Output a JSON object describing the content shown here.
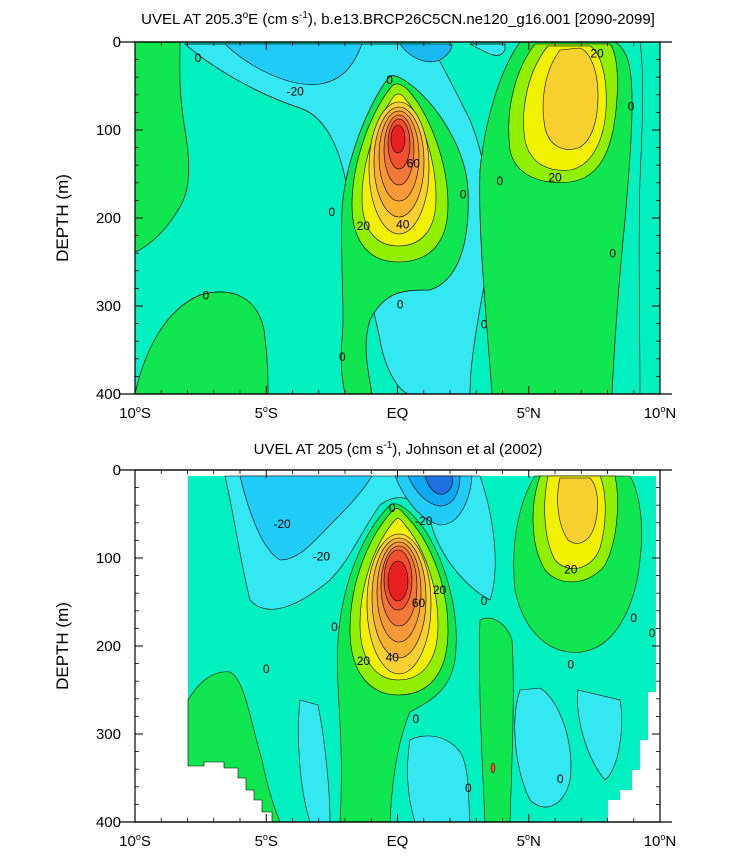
{
  "chart_data": [
    {
      "type": "heatmap",
      "title_main": "UVEL AT 205.3",
      "title_deg": "o",
      "title_unit_pre": "E (cm s",
      "title_exp": "-1",
      "title_rest": "), b.e13.BRCP26C5CN.ne120_g16.001 [2090-2099]",
      "xlabel": "",
      "ylabel": "DEPTH (m)",
      "xlim": [
        -10,
        10
      ],
      "ylim": [
        0,
        400
      ],
      "y_inverted": true,
      "xticks": [
        {
          "value": -10,
          "base": "10",
          "deg": "o",
          "hemi": "S"
        },
        {
          "value": -5,
          "base": "5",
          "deg": "o",
          "hemi": "S"
        },
        {
          "value": 0,
          "base": "EQ",
          "deg": "",
          "hemi": ""
        },
        {
          "value": 5,
          "base": "5",
          "deg": "o",
          "hemi": "N"
        },
        {
          "value": 10,
          "base": "10",
          "deg": "o",
          "hemi": "N"
        }
      ],
      "yticks": [
        0,
        100,
        200,
        300,
        400
      ],
      "contour_interval": 10,
      "features": [
        {
          "kind": "undercurrent_core",
          "x": 0.0,
          "y": 132,
          "value": 85
        },
        {
          "kind": "eastward_max",
          "x": 6.3,
          "y": 55,
          "value": 30
        },
        {
          "kind": "westward_min",
          "x": 0.8,
          "y": 0,
          "value": -20
        }
      ],
      "contour_labels": [
        {
          "text": "0",
          "x": -7.6,
          "y": 17
        },
        {
          "text": "-20",
          "x": -3.9,
          "y": 55
        },
        {
          "text": "0",
          "x": -0.3,
          "y": 42
        },
        {
          "text": "60",
          "x": 0.6,
          "y": 137
        },
        {
          "text": "40",
          "x": 0.2,
          "y": 206
        },
        {
          "text": "20",
          "x": -1.3,
          "y": 208
        },
        {
          "text": "0",
          "x": -2.5,
          "y": 192
        },
        {
          "text": "0",
          "x": 2.5,
          "y": 172
        },
        {
          "text": "0",
          "x": 3.9,
          "y": 157
        },
        {
          "text": "20",
          "x": 6.0,
          "y": 153
        },
        {
          "text": "20",
          "x": 7.6,
          "y": 12
        },
        {
          "text": "0",
          "x": 8.9,
          "y": 72
        },
        {
          "text": "0",
          "x": 8.2,
          "y": 239
        },
        {
          "text": "0",
          "x": -7.3,
          "y": 287
        },
        {
          "text": "0",
          "x": 0.1,
          "y": 297
        },
        {
          "text": "0",
          "x": 3.3,
          "y": 320
        },
        {
          "text": "0",
          "x": -2.1,
          "y": 357
        }
      ]
    },
    {
      "type": "heatmap",
      "title_main": "UVEL AT 205 (cm s",
      "title_exp": "-1",
      "title_rest": "), Johnson et al (2002)",
      "xlabel": "",
      "ylabel": "DEPTH (m)",
      "xlim": [
        -10,
        10
      ],
      "ylim": [
        0,
        400
      ],
      "y_inverted": true,
      "xticks": [
        {
          "value": -10,
          "base": "10",
          "deg": "o",
          "hemi": "S"
        },
        {
          "value": -5,
          "base": "5",
          "deg": "o",
          "hemi": "S"
        },
        {
          "value": 0,
          "base": "EQ",
          "deg": "",
          "hemi": ""
        },
        {
          "value": 5,
          "base": "5",
          "deg": "o",
          "hemi": "N"
        },
        {
          "value": 10,
          "base": "10",
          "deg": "o",
          "hemi": "N"
        }
      ],
      "yticks": [
        0,
        100,
        200,
        300,
        400
      ],
      "contour_interval": 10,
      "data_extent_x": [
        -8,
        9.7
      ],
      "features": [
        {
          "kind": "undercurrent_core",
          "x": 0.0,
          "y": 132,
          "value": 90
        },
        {
          "kind": "eastward_max",
          "x": 6.2,
          "y": 40,
          "value": 30
        },
        {
          "kind": "westward_min",
          "x": 1.6,
          "y": 15,
          "value": -40
        }
      ],
      "contour_labels": [
        {
          "text": "-20",
          "x": -4.4,
          "y": 60
        },
        {
          "text": "-20",
          "x": -2.9,
          "y": 97
        },
        {
          "text": "0",
          "x": -0.2,
          "y": 42
        },
        {
          "text": "-20",
          "x": 1.0,
          "y": 57
        },
        {
          "text": "60",
          "x": 0.8,
          "y": 150
        },
        {
          "text": "20",
          "x": 1.6,
          "y": 135
        },
        {
          "text": "40",
          "x": -0.2,
          "y": 212
        },
        {
          "text": "20",
          "x": -1.3,
          "y": 216
        },
        {
          "text": "0",
          "x": -2.4,
          "y": 177
        },
        {
          "text": "0",
          "x": 3.3,
          "y": 148
        },
        {
          "text": "20",
          "x": 6.6,
          "y": 112
        },
        {
          "text": "0",
          "x": 9.0,
          "y": 167
        },
        {
          "text": "0",
          "x": 9.7,
          "y": 184
        },
        {
          "text": "0",
          "x": 6.6,
          "y": 220
        },
        {
          "text": "0",
          "x": -5.0,
          "y": 225
        },
        {
          "text": "0",
          "x": 0.7,
          "y": 282
        },
        {
          "text": "0",
          "x": 2.7,
          "y": 360
        },
        {
          "text": "0",
          "x": 6.2,
          "y": 350
        }
      ]
    }
  ]
}
